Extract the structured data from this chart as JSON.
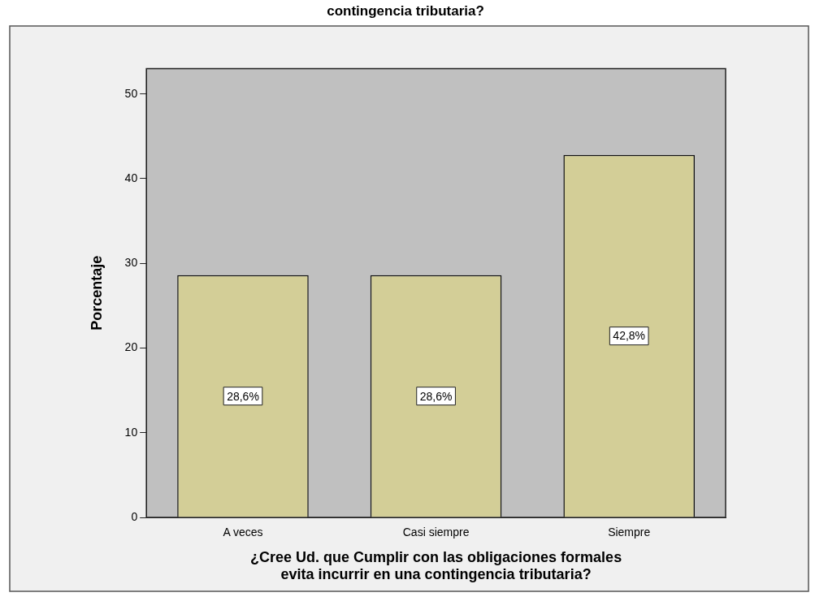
{
  "chart_data": {
    "type": "bar",
    "title": "contingencia tributaria?",
    "xlabel": "¿Cree Ud. que Cumplir con las obligaciones formales\nevita incurrir en una contingencia tributaria?",
    "ylabel": "Porcentaje",
    "categories": [
      "A veces",
      "Casi siempre",
      "Siempre"
    ],
    "values": [
      28.6,
      28.6,
      42.8
    ],
    "value_labels": [
      "28,6%",
      "28,6%",
      "42,8%"
    ],
    "color": "#d3ce97",
    "ylim": [
      0,
      53
    ],
    "yticks": [
      0,
      10,
      20,
      30,
      40,
      50
    ],
    "grid": false,
    "legend": false
  }
}
